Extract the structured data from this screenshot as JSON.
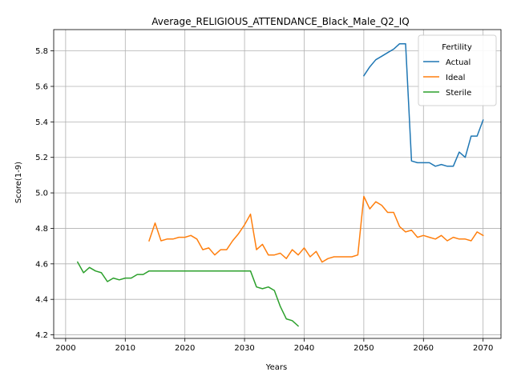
{
  "chart_data": {
    "type": "line",
    "title": "Average_RELIGIOUS_ATTENDANCE_Black_Male_Q2_IQ",
    "xlabel": "Years",
    "ylabel": "Score(1-9)",
    "xlim": [
      1998,
      2073
    ],
    "ylim": [
      4.18,
      5.92
    ],
    "xticks": [
      2000,
      2010,
      2020,
      2030,
      2040,
      2050,
      2060,
      2070
    ],
    "yticks": [
      4.2,
      4.4,
      4.6,
      4.8,
      5.0,
      5.2,
      5.4,
      5.6,
      5.8
    ],
    "ytick_labels": [
      "4.2",
      "4.4",
      "4.6",
      "4.8",
      "5.0",
      "5.2",
      "5.4",
      "5.6",
      "5.8"
    ],
    "grid": true,
    "legend": {
      "title": "Fertility",
      "placement": "top-right"
    },
    "series": [
      {
        "name": "Actual",
        "color": "#1f77b4",
        "x": [
          2050,
          2051,
          2052,
          2053,
          2054,
          2055,
          2056,
          2057,
          2058,
          2059,
          2060,
          2061,
          2062,
          2063,
          2064,
          2065,
          2066,
          2067,
          2068,
          2069,
          2070
        ],
        "y": [
          5.66,
          5.71,
          5.75,
          5.77,
          5.79,
          5.81,
          5.84,
          5.84,
          5.18,
          5.17,
          5.17,
          5.17,
          5.15,
          5.16,
          5.15,
          5.15,
          5.23,
          5.2,
          5.32,
          5.32,
          5.41
        ]
      },
      {
        "name": "Ideal",
        "color": "#ff7f0e",
        "x": [
          2014,
          2015,
          2016,
          2017,
          2018,
          2019,
          2020,
          2021,
          2022,
          2023,
          2024,
          2025,
          2026,
          2027,
          2028,
          2029,
          2030,
          2031,
          2032,
          2033,
          2034,
          2035,
          2036,
          2037,
          2038,
          2039,
          2040,
          2041,
          2042,
          2043,
          2044,
          2045,
          2046,
          2047,
          2048,
          2049,
          2050,
          2051,
          2052,
          2053,
          2054,
          2055,
          2056,
          2057,
          2058,
          2059,
          2060,
          2061,
          2062,
          2063,
          2064,
          2065,
          2066,
          2067,
          2068,
          2069,
          2070
        ],
        "y": [
          4.73,
          4.83,
          4.73,
          4.74,
          4.74,
          4.75,
          4.75,
          4.76,
          4.74,
          4.68,
          4.69,
          4.65,
          4.68,
          4.68,
          4.73,
          4.77,
          4.82,
          4.88,
          4.68,
          4.71,
          4.65,
          4.65,
          4.66,
          4.63,
          4.68,
          4.65,
          4.69,
          4.64,
          4.67,
          4.61,
          4.63,
          4.64,
          4.64,
          4.64,
          4.64,
          4.65,
          4.98,
          4.91,
          4.95,
          4.93,
          4.89,
          4.89,
          4.81,
          4.78,
          4.79,
          4.75,
          4.76,
          4.75,
          4.74,
          4.76,
          4.73,
          4.75,
          4.74,
          4.74,
          4.73,
          4.78,
          4.76
        ]
      },
      {
        "name": "Sterile",
        "color": "#2ca02c",
        "x": [
          2002,
          2003,
          2004,
          2005,
          2006,
          2007,
          2008,
          2009,
          2010,
          2011,
          2012,
          2013,
          2014,
          2015,
          2016,
          2017,
          2018,
          2019,
          2020,
          2021,
          2022,
          2023,
          2024,
          2025,
          2026,
          2027,
          2028,
          2029,
          2030,
          2031,
          2032,
          2033,
          2034,
          2035,
          2036,
          2037,
          2038,
          2039
        ],
        "y": [
          4.61,
          4.55,
          4.58,
          4.56,
          4.55,
          4.5,
          4.52,
          4.51,
          4.52,
          4.52,
          4.54,
          4.54,
          4.56,
          4.56,
          4.56,
          4.56,
          4.56,
          4.56,
          4.56,
          4.56,
          4.56,
          4.56,
          4.56,
          4.56,
          4.56,
          4.56,
          4.56,
          4.56,
          4.56,
          4.56,
          4.47,
          4.46,
          4.47,
          4.45,
          4.36,
          4.29,
          4.28,
          4.25
        ]
      }
    ]
  }
}
